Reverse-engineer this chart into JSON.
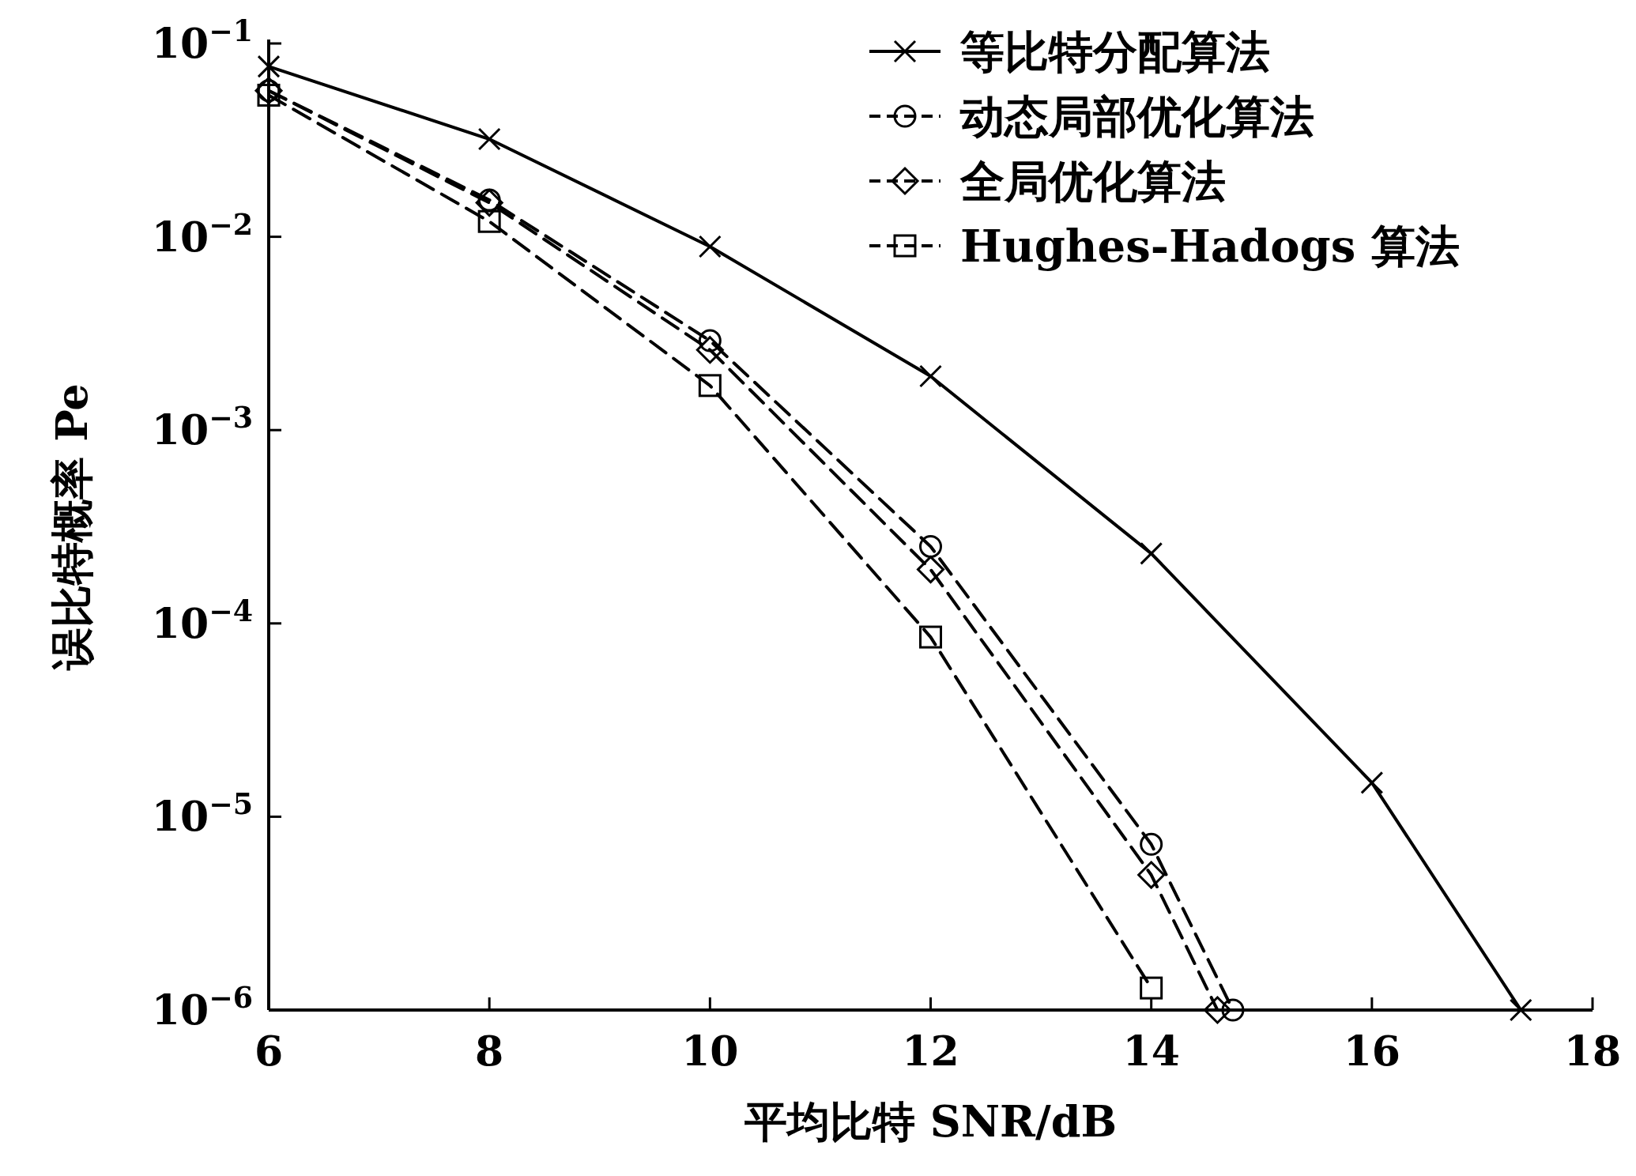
{
  "chart_data": {
    "type": "line",
    "xlabel": "平均比特 SNR/dB",
    "ylabel": "误比特概率 Pe",
    "log": "y",
    "xlim": [
      6,
      18
    ],
    "xticks": [
      6,
      8,
      10,
      12,
      14,
      16,
      18
    ],
    "ylim": [
      1e-06,
      0.1
    ],
    "yticks": [
      {
        "value": 0.1,
        "label": "10$^{−1}$"
      },
      {
        "value": 0.01,
        "label": "10$^{−2}$"
      },
      {
        "value": 0.001,
        "label": "10$^{−3}$"
      },
      {
        "value": 0.0001,
        "label": "10$^{−4}$"
      },
      {
        "value": 1e-05,
        "label": "10$^{−5}$"
      },
      {
        "value": 1e-06,
        "label": "10$^{−6}$"
      }
    ],
    "grid": false,
    "legend": "top right",
    "series": [
      {
        "name": "等比特分配算法",
        "color": "#000000",
        "marker": "cross",
        "line_style": "solid",
        "x": [
          6,
          8,
          10,
          12,
          14,
          16,
          17.35
        ],
        "values": [
          0.076,
          0.032,
          0.0089,
          0.0019,
          0.00023,
          1.5e-05,
          1e-06
        ]
      },
      {
        "name": "动态局部优化算法",
        "color": "#000000",
        "marker": "circle",
        "line_style": "dashed",
        "x": [
          6,
          8,
          10,
          12,
          14,
          14.74
        ],
        "values": [
          0.057,
          0.0155,
          0.0029,
          0.00025,
          7.2e-06,
          1e-06
        ]
      },
      {
        "name": "全局优化算法",
        "color": "#000000",
        "marker": "diamond",
        "line_style": "dashed",
        "x": [
          6,
          8,
          10,
          12,
          14,
          14.6
        ],
        "values": [
          0.057,
          0.015,
          0.0026,
          0.00019,
          5e-06,
          1e-06
        ]
      },
      {
        "name": "Hughes-Hadogs 算法",
        "color": "#000000",
        "marker": "square",
        "line_style": "dashed",
        "x": [
          6,
          8,
          10,
          12,
          14
        ],
        "values": [
          0.054,
          0.012,
          0.0017,
          8.5e-05,
          1.3e-06
        ]
      }
    ]
  }
}
